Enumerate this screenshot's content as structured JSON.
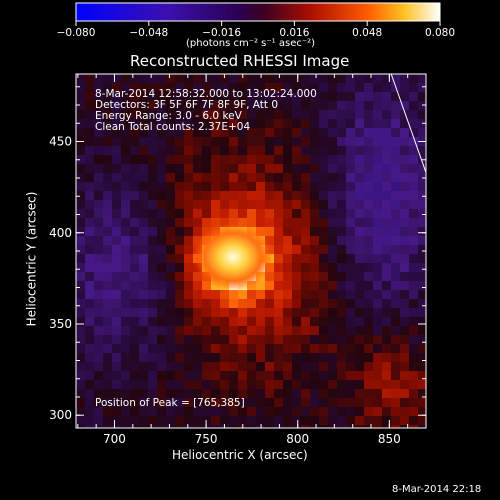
{
  "colorbar": {
    "min": -0.08,
    "max": 0.08,
    "tick_labels": [
      "−0.080",
      "−0.048",
      "−0.016",
      "0.016",
      "0.048",
      "0.080"
    ],
    "units_label": "(photons cm⁻² s⁻¹ asec⁻²)"
  },
  "chart_data": {
    "type": "heatmap",
    "title": "Reconstructed RHESSI Image",
    "xlabel": "Heliocentric X (arcsec)",
    "ylabel": "Heliocentric Y (arcsec)",
    "xlim": [
      679,
      870
    ],
    "ylim": [
      293,
      487
    ],
    "x_ticks": [
      "700",
      "750",
      "800",
      "850"
    ],
    "y_ticks": [
      "300",
      "350",
      "400",
      "450"
    ],
    "peak": [
      765,
      385
    ],
    "annotations": [
      "8-Mar-2014 12:58:32.000 to 13:02:24.000",
      "Detectors: 3F 5F 6F 7F 8F 9F, Att 0",
      "Energy Range: 3.0 - 6.0 keV",
      "Clean     Total counts: 2.37E+04"
    ],
    "peak_label": "Position of Peak = [765,385]",
    "limb_line": {
      "x": [
        851,
        870
      ],
      "y": [
        487,
        433
      ]
    }
  },
  "timestamp": "8-Mar-2014 22:18",
  "colors": {
    "background": "#000000",
    "text": "#ffffff"
  }
}
